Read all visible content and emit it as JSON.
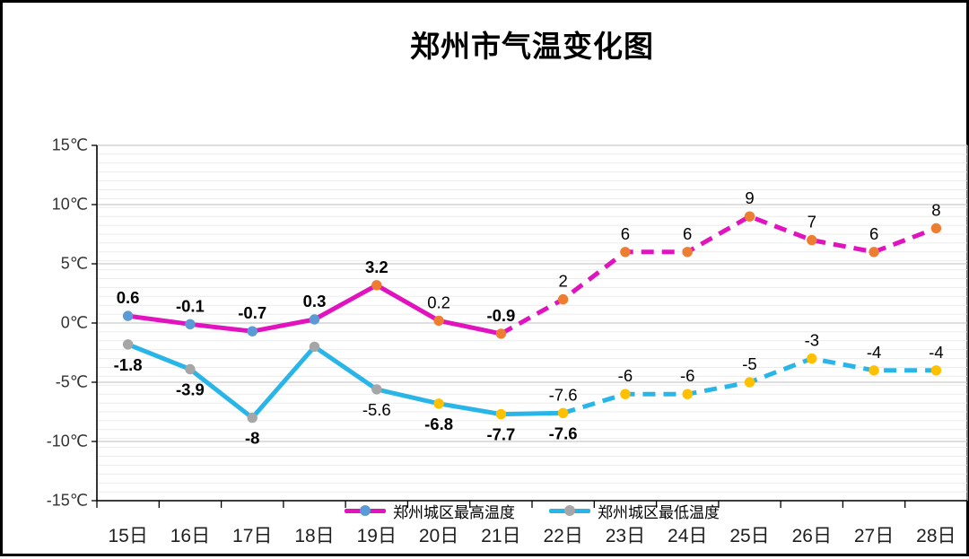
{
  "chart_data": {
    "type": "line",
    "title": "郑州市气温变化图",
    "categories": [
      "15日",
      "16日",
      "17日",
      "18日",
      "19日",
      "20日",
      "21日",
      "22日",
      "23日",
      "24日",
      "25日",
      "26日",
      "27日",
      "28日"
    ],
    "ylim": [
      -15,
      15
    ],
    "y_major_step": 5,
    "y_minor_step": 0.75,
    "ytick_labels": [
      "15℃",
      "10℃",
      "5℃",
      "0℃",
      "-5℃",
      "-10℃",
      "-15℃"
    ],
    "grid": "horizontal-on",
    "legend_position": "bottom-center",
    "colors": {
      "max_line": "#E013BF",
      "min_line": "#29B5E8",
      "marker_blue": "#5B9BD5",
      "marker_orange": "#ED7D31",
      "marker_gray": "#A6A6A6",
      "marker_yellow": "#FFC000",
      "grid_minor": "#EBEBEB",
      "grid_major": "#C9C9C9",
      "axis": "#000000",
      "axis_text": "#333333",
      "label_text": "#000000"
    },
    "series": [
      {
        "name": "郑州城区最高温度",
        "line_color": "#E013BF",
        "solid_until_index": 6,
        "values": [
          0.6,
          -0.1,
          -0.7,
          0.3,
          3.2,
          0.2,
          -0.9,
          2,
          6,
          6,
          9,
          7,
          6,
          8
        ],
        "marker_colors": [
          "#5B9BD5",
          "#5B9BD5",
          "#5B9BD5",
          "#5B9BD5",
          "#ED7D31",
          "#ED7D31",
          "#ED7D31",
          "#ED7D31",
          "#ED7D31",
          "#ED7D31",
          "#ED7D31",
          "#ED7D31",
          "#ED7D31",
          "#ED7D31"
        ],
        "labels": [
          {
            "i": 0,
            "t": "0.6",
            "bold": true,
            "side": "above"
          },
          {
            "i": 1,
            "t": "-0.1",
            "bold": true,
            "side": "above"
          },
          {
            "i": 2,
            "t": "-0.7",
            "bold": true,
            "side": "above"
          },
          {
            "i": 3,
            "t": "0.3",
            "bold": true,
            "side": "above"
          },
          {
            "i": 4,
            "t": "3.2",
            "bold": true,
            "side": "above"
          },
          {
            "i": 5,
            "t": "0.2",
            "bold": false,
            "side": "above"
          },
          {
            "i": 6,
            "t": "-0.9",
            "bold": true,
            "side": "above"
          },
          {
            "i": 7,
            "t": "2",
            "bold": false,
            "side": "above"
          },
          {
            "i": 8,
            "t": "6",
            "bold": false,
            "side": "above"
          },
          {
            "i": 9,
            "t": "6",
            "bold": false,
            "side": "above"
          },
          {
            "i": 10,
            "t": "9",
            "bold": false,
            "side": "above"
          },
          {
            "i": 11,
            "t": "7",
            "bold": false,
            "side": "above"
          },
          {
            "i": 12,
            "t": "6",
            "bold": false,
            "side": "above"
          },
          {
            "i": 13,
            "t": "8",
            "bold": false,
            "side": "above"
          }
        ]
      },
      {
        "name": "郑州城区最低温度",
        "line_color": "#29B5E8",
        "solid_until_index": 7,
        "values": [
          -1.8,
          -3.9,
          -8,
          -2,
          -5.6,
          -6.8,
          -7.7,
          -7.6,
          -6,
          -6,
          -5,
          -3,
          -4,
          -4
        ],
        "unlabeled_indices": [
          3
        ],
        "marker_colors": [
          "#A6A6A6",
          "#A6A6A6",
          "#A6A6A6",
          "#A6A6A6",
          "#A6A6A6",
          "#FFC000",
          "#FFC000",
          "#FFC000",
          "#FFC000",
          "#FFC000",
          "#FFC000",
          "#FFC000",
          "#FFC000",
          "#FFC000"
        ],
        "labels": [
          {
            "i": 0,
            "t": "-1.8",
            "bold": true,
            "side": "below"
          },
          {
            "i": 1,
            "t": "-3.9",
            "bold": true,
            "side": "below"
          },
          {
            "i": 2,
            "t": "-8",
            "bold": true,
            "side": "below"
          },
          {
            "i": 4,
            "t": "-5.6",
            "bold": false,
            "side": "below"
          },
          {
            "i": 5,
            "t": "-6.8",
            "bold": true,
            "side": "below"
          },
          {
            "i": 6,
            "t": "-7.7",
            "bold": true,
            "side": "below"
          },
          {
            "i": 7,
            "t": "-7.6",
            "bold": true,
            "side": "below"
          },
          {
            "i": 7,
            "t": "-7.6",
            "bold": false,
            "side": "above"
          },
          {
            "i": 8,
            "t": "-6",
            "bold": false,
            "side": "above"
          },
          {
            "i": 9,
            "t": "-6",
            "bold": false,
            "side": "above"
          },
          {
            "i": 10,
            "t": "-5",
            "bold": false,
            "side": "above"
          },
          {
            "i": 11,
            "t": "-3",
            "bold": false,
            "side": "above"
          },
          {
            "i": 12,
            "t": "-4",
            "bold": false,
            "side": "above"
          },
          {
            "i": 13,
            "t": "-4",
            "bold": false,
            "side": "above"
          }
        ]
      }
    ],
    "legend": [
      {
        "label": "郑州城区最高温度",
        "line_color": "#E013BF",
        "marker_color": "#5B9BD5"
      },
      {
        "label": "郑州城区最低温度",
        "line_color": "#29B5E8",
        "marker_color": "#A6A6A6"
      }
    ]
  }
}
